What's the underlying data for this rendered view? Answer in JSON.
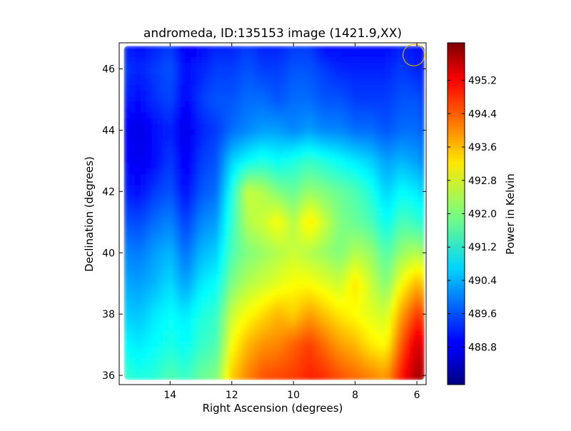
{
  "chart_data": {
    "type": "heatmap",
    "title": "andromeda, ID:135153 image (1421.9,XX)",
    "xlabel": "Right Ascension (degrees)",
    "ylabel": "Declination (degrees)",
    "xlim": [
      15.65,
      5.7
    ],
    "ylim": [
      35.7,
      46.85
    ],
    "x_ticks": [
      14,
      12,
      10,
      8,
      6
    ],
    "y_ticks": [
      36,
      38,
      40,
      42,
      44,
      46
    ],
    "colorbar": {
      "label": "Power in Kelvin",
      "colormap": "jet",
      "range": [
        487.9,
        496.1
      ],
      "ticks": [
        "495.2",
        "494.4",
        "493.6",
        "492.8",
        "492.0",
        "491.2",
        "490.4",
        "489.6",
        "488.8"
      ]
    },
    "data_extent": {
      "ra": [
        15.5,
        5.75
      ],
      "dec": [
        35.85,
        46.75
      ]
    },
    "beam_marker": {
      "ra": 6.1,
      "dec": 46.45,
      "radius_deg": 0.35,
      "color": "#d4b400"
    },
    "dec_rows": [
      36,
      37,
      38,
      39,
      40,
      41,
      42,
      43,
      44,
      45,
      46,
      46.7
    ],
    "ra_cols": [
      15.5,
      15,
      14.5,
      14,
      13.5,
      13,
      12.5,
      12,
      11.5,
      11,
      10.5,
      10,
      9.5,
      9,
      8.5,
      8,
      7.5,
      7,
      6.5,
      6,
      5.75
    ],
    "values": [
      [
        491.4,
        491.2,
        491.3,
        491.6,
        491.4,
        491.8,
        492.0,
        493.4,
        494.0,
        494.4,
        494.5,
        494.6,
        494.8,
        494.7,
        494.4,
        494.2,
        494.0,
        493.8,
        494.9,
        495.8,
        495.6
      ],
      [
        491.0,
        490.8,
        491.0,
        491.2,
        491.0,
        491.4,
        491.6,
        493.0,
        493.6,
        493.9,
        494.0,
        494.3,
        494.6,
        494.2,
        493.8,
        493.6,
        493.2,
        493.0,
        494.4,
        495.4,
        495.2
      ],
      [
        490.6,
        490.5,
        490.8,
        491.0,
        490.8,
        491.2,
        491.4,
        492.6,
        493.0,
        493.3,
        493.6,
        493.4,
        493.8,
        493.5,
        493.2,
        493.0,
        492.8,
        492.6,
        493.8,
        494.6,
        494.4
      ],
      [
        490.3,
        490.2,
        490.4,
        490.7,
        490.2,
        490.8,
        491.0,
        492.0,
        492.4,
        492.6,
        492.8,
        493.0,
        493.0,
        492.8,
        492.6,
        493.2,
        492.6,
        492.0,
        493.0,
        493.6,
        493.4
      ],
      [
        490.0,
        489.9,
        490.2,
        490.4,
        489.8,
        490.4,
        490.6,
        491.6,
        492.0,
        492.2,
        492.4,
        492.6,
        492.4,
        492.2,
        492.0,
        492.4,
        492.2,
        491.6,
        492.2,
        492.4,
        492.2
      ],
      [
        489.6,
        489.5,
        489.8,
        490.0,
        489.4,
        490.0,
        490.2,
        491.4,
        492.4,
        492.6,
        493.0,
        492.4,
        493.2,
        492.6,
        492.0,
        491.8,
        491.6,
        491.0,
        491.6,
        491.4,
        491.2
      ],
      [
        489.2,
        489.0,
        489.4,
        489.6,
        489.0,
        489.6,
        489.8,
        491.2,
        492.6,
        492.4,
        492.0,
        491.8,
        492.2,
        492.0,
        491.8,
        491.6,
        491.2,
        490.6,
        491.0,
        490.8,
        490.6
      ],
      [
        489.0,
        488.8,
        489.0,
        489.4,
        488.8,
        489.4,
        489.6,
        490.6,
        491.0,
        491.2,
        491.0,
        491.2,
        491.4,
        491.2,
        491.0,
        490.8,
        490.6,
        490.2,
        490.4,
        490.2,
        490.0
      ],
      [
        488.9,
        488.7,
        489.0,
        489.2,
        488.7,
        489.2,
        489.4,
        489.8,
        490.0,
        490.2,
        490.2,
        490.0,
        490.2,
        490.0,
        490.0,
        489.8,
        489.8,
        489.6,
        489.8,
        489.8,
        489.6
      ],
      [
        489.2,
        489.0,
        489.3,
        489.5,
        488.9,
        489.4,
        489.6,
        489.6,
        489.8,
        489.8,
        489.6,
        489.8,
        489.8,
        489.6,
        489.6,
        489.4,
        489.4,
        489.4,
        489.6,
        489.6,
        489.4
      ],
      [
        489.4,
        489.2,
        489.4,
        489.6,
        489.0,
        489.2,
        489.4,
        489.4,
        489.6,
        489.4,
        489.4,
        489.6,
        489.6,
        489.4,
        489.2,
        489.2,
        489.2,
        489.2,
        489.4,
        489.2,
        489.2
      ],
      [
        489.2,
        489.0,
        489.2,
        489.4,
        488.8,
        489.0,
        489.2,
        489.2,
        489.4,
        489.2,
        489.2,
        489.4,
        489.4,
        489.0,
        489.0,
        489.0,
        489.0,
        489.0,
        489.2,
        489.0,
        489.0
      ]
    ]
  }
}
